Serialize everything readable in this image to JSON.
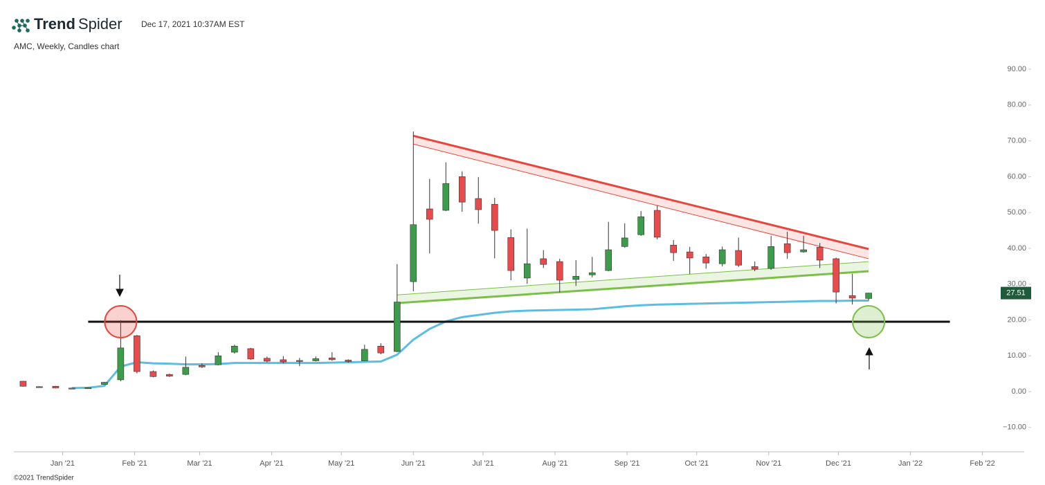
{
  "header": {
    "brand_bold": "Trend",
    "brand_thin": "Spider",
    "timestamp": "Dec 17, 2021 10:37AM EST",
    "subtitle": "AMC, Weekly, Candles chart"
  },
  "footer": {
    "copyright": "©2021 TrendSpider"
  },
  "chart_data": {
    "type": "candlestick",
    "x": [
      -17,
      -10,
      -3,
      4,
      11,
      18,
      25,
      32,
      39,
      46,
      53,
      60,
      67,
      74,
      81,
      88,
      95,
      102,
      109,
      116,
      123,
      130,
      137,
      144,
      151,
      158,
      165,
      172,
      179,
      186,
      193,
      200,
      207,
      214,
      221,
      228,
      235,
      242,
      249,
      256,
      263,
      270,
      277,
      284,
      291,
      298,
      305,
      312,
      319,
      326,
      333,
      340,
      347
    ],
    "open": [
      2.9,
      1.4,
      1.5,
      1.0,
      1.0,
      2.0,
      3.3,
      15.6,
      5.6,
      4.8,
      4.8,
      7.3,
      7.5,
      11.0,
      12.0,
      9.3,
      8.9,
      8.6,
      8.6,
      9.4,
      8.8,
      8.6,
      12.7,
      11.2,
      30.7,
      51.0,
      50.6,
      60.0,
      53.9,
      52.3,
      43.0,
      31.7,
      37.1,
      36.3,
      31.3,
      32.6,
      33.8,
      40.5,
      43.8,
      50.6,
      40.9,
      39.0,
      37.6,
      35.7,
      39.4,
      34.9,
      34.4,
      41.3,
      39.0,
      40.3,
      37.1,
      26.8,
      26.0
    ],
    "high": [
      3.0,
      1.5,
      1.6,
      1.1,
      1.2,
      2.7,
      19.9,
      15.8,
      5.9,
      5.0,
      9.8,
      7.9,
      11.0,
      13.1,
      12.2,
      9.8,
      9.9,
      9.4,
      9.8,
      11.0,
      9.0,
      13.1,
      13.5,
      35.6,
      72.6,
      59.4,
      64.0,
      61.5,
      59.9,
      54.1,
      45.3,
      45.5,
      39.5,
      37.1,
      36.7,
      37.6,
      47.4,
      47.0,
      50.4,
      52.0,
      42.3,
      40.4,
      38.4,
      40.5,
      43.0,
      36.3,
      43.5,
      44.6,
      43.5,
      41.5,
      37.4,
      32.9,
      27.6
    ],
    "low": [
      1.4,
      1.2,
      0.9,
      0.9,
      1.0,
      1.9,
      2.9,
      5.1,
      4.0,
      4.1,
      4.6,
      6.6,
      7.3,
      10.6,
      8.9,
      8.2,
      7.9,
      7.1,
      8.4,
      8.6,
      8.1,
      8.5,
      10.4,
      11.0,
      28.0,
      38.6,
      50.4,
      50.2,
      46.9,
      37.2,
      31.1,
      30.1,
      34.5,
      27.7,
      29.5,
      31.9,
      33.6,
      40.2,
      43.5,
      42.5,
      36.5,
      32.8,
      34.3,
      35.0,
      34.8,
      33.6,
      34.0,
      37.1,
      38.8,
      34.5,
      24.6,
      24.3,
      25.4
    ],
    "close": [
      1.5,
      1.3,
      1.0,
      1.0,
      1.1,
      2.6,
      12.2,
      5.6,
      4.2,
      4.3,
      6.8,
      6.9,
      10.0,
      12.7,
      9.1,
      8.5,
      8.3,
      8.7,
      9.2,
      8.9,
      8.4,
      11.8,
      10.8,
      25.0,
      46.6,
      48.1,
      58.1,
      52.9,
      50.8,
      45.0,
      33.8,
      35.7,
      35.5,
      31.1,
      32.2,
      33.2,
      39.6,
      42.9,
      48.8,
      43.1,
      38.8,
      37.3,
      35.9,
      39.6,
      35.3,
      34.2,
      40.5,
      38.8,
      39.6,
      36.7,
      27.8,
      26.1,
      27.51
    ],
    "up_color": "#3d9b4c",
    "down_color": "#e84b4b",
    "ma": {
      "color": "#5bbde0",
      "values": [
        null,
        null,
        null,
        1.0,
        1.1,
        1.6,
        7.0,
        8.2,
        7.9,
        7.8,
        7.6,
        7.6,
        7.7,
        8.0,
        8.0,
        8.0,
        8.0,
        8.0,
        8.0,
        8.1,
        8.2,
        8.3,
        8.4,
        10.3,
        14.5,
        17.5,
        19.6,
        20.8,
        21.4,
        22.0,
        22.4,
        22.6,
        22.7,
        22.8,
        22.9,
        23.0,
        23.4,
        23.8,
        24.1,
        24.3,
        24.4,
        24.5,
        24.6,
        24.7,
        24.8,
        24.9,
        25.0,
        25.1,
        25.2,
        25.3,
        25.3,
        25.4,
        25.4
      ]
    },
    "level": {
      "value": 19.5,
      "x": [
        11,
        382
      ],
      "color": "#111111"
    },
    "channels": [
      {
        "x": [
          151,
          347
        ],
        "upper": [
          71.4,
          39.8
        ],
        "lower": [
          69.1,
          37.1
        ],
        "thick": "upper",
        "color": "#e8463c",
        "fill": "rgba(232,70,60,0.14)"
      },
      {
        "x": [
          144,
          347
        ],
        "upper": [
          27.0,
          36.3
        ],
        "lower": [
          24.7,
          33.6
        ],
        "thick": "lower",
        "color": "#7cbf48",
        "fill": "rgba(124,191,72,0.16)"
      }
    ],
    "markers": [
      {
        "x": 25,
        "value": 19.5,
        "color": "#e8463c",
        "fill": "rgba(232,70,60,0.25)"
      },
      {
        "x": 347,
        "value": 19.5,
        "color": "#7cbf48",
        "fill": "rgba(124,191,72,0.25)"
      }
    ],
    "last_price": 27.51,
    "last_price_color": "#1f5a3a",
    "xlim": [
      -21,
      414
    ],
    "xticks": [
      {
        "value": 0,
        "label": "Jan '21"
      },
      {
        "value": 31,
        "label": "Feb '21"
      },
      {
        "value": 59,
        "label": "Mar '21"
      },
      {
        "value": 90,
        "label": "Apr '21"
      },
      {
        "value": 120,
        "label": "May '21"
      },
      {
        "value": 151,
        "label": "Jun '21"
      },
      {
        "value": 181,
        "label": "Jul '21"
      },
      {
        "value": 212,
        "label": "Aug '21"
      },
      {
        "value": 243,
        "label": "Sep '21"
      },
      {
        "value": 273,
        "label": "Oct '21"
      },
      {
        "value": 304,
        "label": "Nov '21"
      },
      {
        "value": 334,
        "label": "Dec '21"
      },
      {
        "value": 365,
        "label": "Jan '22"
      },
      {
        "value": 396,
        "label": "Feb '22"
      }
    ],
    "ylim": [
      -16.8,
      93.1
    ],
    "yticks": [
      {
        "value": -10,
        "label": "−10.00"
      },
      {
        "value": 0,
        "label": "0.00"
      },
      {
        "value": 10,
        "label": "10.00"
      },
      {
        "value": 20,
        "label": "20.00"
      },
      {
        "value": 30,
        "label": "30.00"
      },
      {
        "value": 40,
        "label": "40.00"
      },
      {
        "value": 50,
        "label": "50.00"
      },
      {
        "value": 60,
        "label": "60.00"
      },
      {
        "value": 70,
        "label": "70.00"
      },
      {
        "value": 80,
        "label": "80.00"
      },
      {
        "value": 90,
        "label": "90.00"
      }
    ]
  }
}
